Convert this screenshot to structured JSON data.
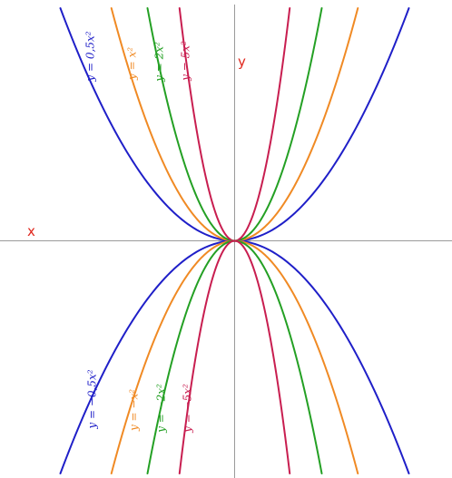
{
  "chart_data": {
    "type": "line",
    "title": "",
    "xlabel": "x",
    "ylabel": "y",
    "xlim": [
      -4,
      4
    ],
    "ylim": [
      -4.5,
      4.5
    ],
    "grid": false,
    "legend": "inline",
    "series": [
      {
        "name": "y = 0,5x²",
        "formula": "0.5*x^2",
        "a": 0.5,
        "color": "#1f1fc8"
      },
      {
        "name": "y = x²",
        "formula": "x^2",
        "a": 1,
        "color": "#f08a24"
      },
      {
        "name": "y = 2x²",
        "formula": "2*x^2",
        "a": 2,
        "color": "#24a024"
      },
      {
        "name": "y = 5x²",
        "formula": "5*x^2",
        "a": 5,
        "color": "#c81e50"
      },
      {
        "name": "y = −0,5x²",
        "formula": "-0.5*x^2",
        "a": -0.5,
        "color": "#1f1fc8"
      },
      {
        "name": "y = −x²",
        "formula": "-x^2",
        "a": -1,
        "color": "#f08a24"
      },
      {
        "name": "y = −2x²",
        "formula": "-2*x^2",
        "a": -2,
        "color": "#24a024"
      },
      {
        "name": "y = −5x²",
        "formula": "-5*x^2",
        "a": -5,
        "color": "#c81e50"
      }
    ]
  }
}
